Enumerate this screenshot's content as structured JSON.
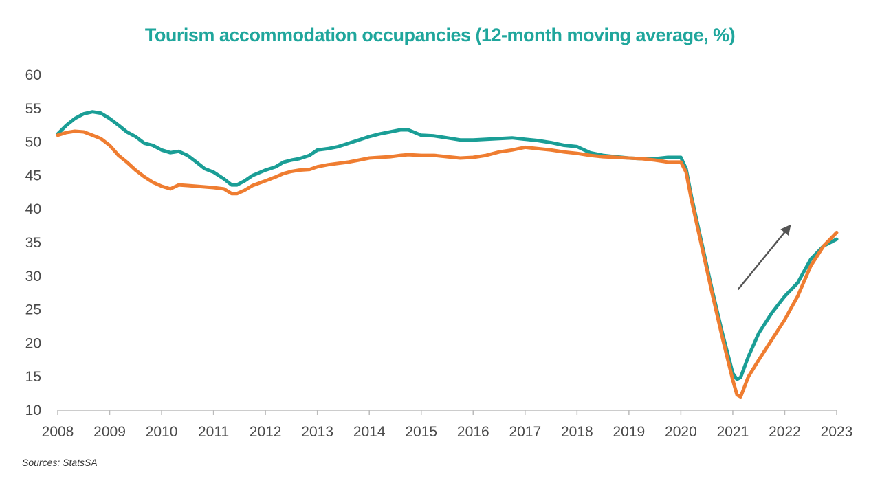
{
  "colors": {
    "series1": "#1a9e96",
    "series2": "#ef7d31",
    "title": "#1fa69c",
    "arrow": "#555555",
    "axis": "#bbbbbb"
  },
  "source": "Sources: StatsSA",
  "chart_data": {
    "type": "line",
    "title": "Tourism accommodation occupancies (12-month moving average, %)",
    "xlabel": "",
    "ylabel": "",
    "xlim": [
      2008,
      2023
    ],
    "ylim": [
      10,
      60
    ],
    "yticks": [
      10,
      15,
      20,
      25,
      30,
      35,
      40,
      45,
      50,
      55,
      60
    ],
    "xticks": [
      "2008",
      "2009",
      "2010",
      "2011",
      "2012",
      "2013",
      "2014",
      "2015",
      "2016",
      "2017",
      "2018",
      "2019",
      "2020",
      "2021",
      "2022",
      "2023"
    ],
    "grid": false,
    "legend": "none",
    "annotations": [
      {
        "type": "arrow",
        "from": [
          2021.1,
          28
        ],
        "to": [
          2022.1,
          37.5
        ]
      }
    ],
    "series": [
      {
        "color": "#1a9e96",
        "x": [
          2008.0,
          2008.17,
          2008.33,
          2008.5,
          2008.67,
          2008.83,
          2009.0,
          2009.17,
          2009.33,
          2009.5,
          2009.67,
          2009.83,
          2010.0,
          2010.17,
          2010.33,
          2010.5,
          2010.67,
          2010.83,
          2011.0,
          2011.2,
          2011.35,
          2011.45,
          2011.6,
          2011.75,
          2012.0,
          2012.2,
          2012.35,
          2012.5,
          2012.65,
          2012.85,
          2013.0,
          2013.2,
          2013.4,
          2013.6,
          2013.8,
          2014.0,
          2014.2,
          2014.4,
          2014.6,
          2014.75,
          2015.0,
          2015.25,
          2015.5,
          2015.75,
          2016.0,
          2016.25,
          2016.5,
          2016.75,
          2017.0,
          2017.25,
          2017.5,
          2017.75,
          2018.0,
          2018.25,
          2018.5,
          2018.75,
          2019.0,
          2019.25,
          2019.5,
          2019.75,
          2019.9,
          2020.0,
          2020.1,
          2020.2,
          2020.4,
          2020.6,
          2020.8,
          2021.0,
          2021.08,
          2021.15,
          2021.3,
          2021.5,
          2021.75,
          2022.0,
          2022.25,
          2022.5,
          2022.75,
          2023.0
        ],
        "values": [
          51.2,
          52.5,
          53.5,
          54.2,
          54.5,
          54.3,
          53.5,
          52.5,
          51.5,
          50.8,
          49.8,
          49.5,
          48.8,
          48.4,
          48.6,
          48.0,
          47.0,
          46.0,
          45.5,
          44.5,
          43.6,
          43.6,
          44.2,
          45.0,
          45.8,
          46.3,
          47.0,
          47.3,
          47.5,
          48.0,
          48.8,
          49.0,
          49.3,
          49.8,
          50.3,
          50.8,
          51.2,
          51.5,
          51.8,
          51.8,
          51.0,
          50.9,
          50.6,
          50.3,
          50.3,
          50.4,
          50.5,
          50.6,
          50.4,
          50.2,
          49.9,
          49.5,
          49.3,
          48.4,
          48.0,
          47.8,
          47.6,
          47.5,
          47.5,
          47.7,
          47.7,
          47.7,
          46.0,
          42.0,
          35.0,
          28.0,
          21.5,
          15.5,
          14.6,
          14.9,
          18.0,
          21.5,
          24.5,
          27.0,
          29.0,
          32.5,
          34.5,
          35.5
        ]
      },
      {
        "color": "#ef7d31",
        "x": [
          2008.0,
          2008.17,
          2008.33,
          2008.5,
          2008.67,
          2008.83,
          2009.0,
          2009.17,
          2009.33,
          2009.5,
          2009.67,
          2009.83,
          2010.0,
          2010.17,
          2010.33,
          2010.5,
          2010.67,
          2010.83,
          2011.0,
          2011.2,
          2011.35,
          2011.45,
          2011.6,
          2011.75,
          2012.0,
          2012.2,
          2012.35,
          2012.5,
          2012.65,
          2012.85,
          2013.0,
          2013.2,
          2013.4,
          2013.6,
          2013.8,
          2014.0,
          2014.2,
          2014.4,
          2014.6,
          2014.75,
          2015.0,
          2015.25,
          2015.5,
          2015.75,
          2016.0,
          2016.25,
          2016.5,
          2016.75,
          2017.0,
          2017.25,
          2017.5,
          2017.75,
          2018.0,
          2018.25,
          2018.5,
          2018.75,
          2019.0,
          2019.25,
          2019.5,
          2019.75,
          2019.9,
          2020.0,
          2020.1,
          2020.2,
          2020.4,
          2020.6,
          2020.8,
          2021.0,
          2021.08,
          2021.15,
          2021.3,
          2021.5,
          2021.75,
          2022.0,
          2022.25,
          2022.5,
          2022.75,
          2023.0
        ],
        "values": [
          51.0,
          51.4,
          51.6,
          51.5,
          51.0,
          50.5,
          49.5,
          48.0,
          47.0,
          45.8,
          44.8,
          44.0,
          43.4,
          43.0,
          43.6,
          43.5,
          43.4,
          43.3,
          43.2,
          43.0,
          42.3,
          42.3,
          42.8,
          43.5,
          44.2,
          44.8,
          45.3,
          45.6,
          45.8,
          45.9,
          46.3,
          46.6,
          46.8,
          47.0,
          47.3,
          47.6,
          47.7,
          47.8,
          48.0,
          48.1,
          48.0,
          48.0,
          47.8,
          47.6,
          47.7,
          48.0,
          48.5,
          48.8,
          49.2,
          49.0,
          48.8,
          48.5,
          48.3,
          48.0,
          47.8,
          47.7,
          47.6,
          47.5,
          47.3,
          47.0,
          47.0,
          47.0,
          45.5,
          41.5,
          34.5,
          27.5,
          20.8,
          14.5,
          12.3,
          12.0,
          15.0,
          17.5,
          20.5,
          23.5,
          27.0,
          31.5,
          34.5,
          36.5
        ]
      }
    ]
  }
}
